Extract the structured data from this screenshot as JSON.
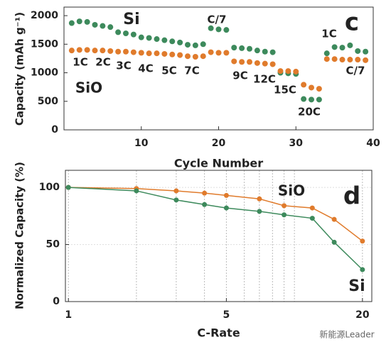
{
  "chart_data": [
    {
      "type": "scatter",
      "xlabel": "Cycle Number",
      "ylabel": "Capacity (mAh g⁻¹)",
      "x": [
        1,
        2,
        3,
        4,
        5,
        6,
        7,
        8,
        9,
        10,
        11,
        12,
        13,
        14,
        15,
        16,
        17,
        18,
        19,
        20,
        21,
        22,
        23,
        24,
        25,
        26,
        27,
        28,
        29,
        30,
        31,
        32,
        33,
        34,
        35,
        36,
        37,
        38,
        39
      ],
      "series": [
        {
          "name": "Si",
          "color": "#3d8a5c",
          "values": [
            1870,
            1900,
            1890,
            1840,
            1820,
            1800,
            1710,
            1690,
            1670,
            1620,
            1610,
            1590,
            1570,
            1550,
            1530,
            1490,
            1480,
            1500,
            1780,
            1760,
            1750,
            1440,
            1430,
            1420,
            1390,
            1370,
            1360,
            1000,
            990,
            980,
            540,
            530,
            530,
            1340,
            1450,
            1440,
            1480,
            1380,
            1370
          ]
        },
        {
          "name": "SiO",
          "color": "#e07b2c",
          "values": [
            1390,
            1400,
            1400,
            1390,
            1390,
            1380,
            1370,
            1370,
            1360,
            1350,
            1340,
            1340,
            1330,
            1320,
            1310,
            1290,
            1280,
            1290,
            1360,
            1350,
            1350,
            1200,
            1190,
            1190,
            1170,
            1160,
            1150,
            1030,
            1030,
            1020,
            790,
            740,
            720,
            1240,
            1240,
            1230,
            1230,
            1230,
            1220
          ]
        }
      ],
      "annotations": [
        {
          "text": "Si",
          "color": "#3d8a5c"
        },
        {
          "text": "SiO",
          "color": "#e07b2c"
        },
        {
          "text": "c",
          "color": "#111111"
        },
        {
          "text": "C/7",
          "color": "#111111"
        },
        {
          "text": "1C",
          "color": "#111111"
        },
        {
          "text": "2C",
          "color": "#111111"
        },
        {
          "text": "3C",
          "color": "#111111"
        },
        {
          "text": "4C",
          "color": "#111111"
        },
        {
          "text": "5C",
          "color": "#111111"
        },
        {
          "text": "7C",
          "color": "#111111"
        },
        {
          "text": "9C",
          "color": "#111111"
        },
        {
          "text": "12C",
          "color": "#111111"
        },
        {
          "text": "15C",
          "color": "#111111"
        },
        {
          "text": "20C",
          "color": "#111111"
        },
        {
          "text": "1C",
          "color": "#111111"
        },
        {
          "text": "C/7",
          "color": "#111111"
        }
      ],
      "xlim": [
        0,
        40
      ],
      "xticks": [
        10,
        20,
        30,
        40
      ],
      "ylim": [
        0,
        2150
      ],
      "yticks": [
        0,
        500,
        1000,
        1500,
        2000
      ],
      "grid": false
    },
    {
      "type": "line",
      "xlabel": "C-Rate",
      "ylabel": "Normalized Capacity (%)",
      "x": [
        1,
        2,
        3,
        4,
        5,
        7,
        9,
        12,
        15,
        20
      ],
      "series": [
        {
          "name": "SiO",
          "color": "#e07b2c",
          "values": [
            100,
            99,
            97,
            95,
            93,
            90,
            84,
            82,
            72,
            53
          ]
        },
        {
          "name": "Si",
          "color": "#3d8a5c",
          "values": [
            100,
            97,
            89,
            85,
            82,
            79,
            76,
            73,
            52,
            28
          ]
        }
      ],
      "annotations": [
        {
          "text": "SiO",
          "color": "#e07b2c"
        },
        {
          "text": "d",
          "color": "#111111"
        },
        {
          "text": "Si",
          "color": "#3d8a5c"
        }
      ],
      "xlog": true,
      "xlim": [
        0.97,
        22
      ],
      "xticks": [
        1,
        5,
        20
      ],
      "xminorticks": [
        2,
        3,
        4,
        6,
        7,
        8,
        9,
        10
      ],
      "ylim": [
        0,
        115
      ],
      "yticks": [
        0,
        50,
        100
      ],
      "grid": true
    }
  ],
  "watermark": "新能源Leader"
}
